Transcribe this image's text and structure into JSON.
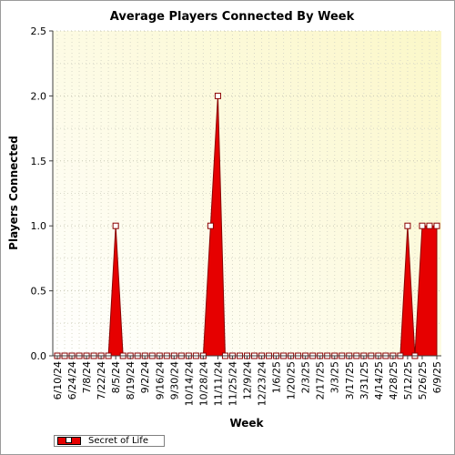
{
  "chart_data": {
    "type": "area",
    "title": "Average Players Connected By Week",
    "xlabel": "Week",
    "ylabel": "Players Connected",
    "ylim": [
      0,
      2.5
    ],
    "yticks": [
      "0.0",
      "0.5",
      "1.0",
      "1.5",
      "2.0",
      "2.5"
    ],
    "grid": true,
    "legend_position": "bottom-left",
    "x_tick_labels": [
      "6/10/24",
      "6/24/24",
      "7/8/24",
      "7/22/24",
      "8/5/24",
      "8/19/24",
      "9/2/24",
      "9/16/24",
      "9/30/24",
      "10/14/24",
      "10/28/24",
      "11/11/24",
      "11/25/24",
      "12/9/24",
      "12/23/24",
      "1/6/25",
      "1/20/25",
      "2/3/25",
      "2/17/25",
      "3/3/25",
      "3/17/25",
      "3/31/25",
      "4/14/25",
      "4/28/25",
      "5/12/25",
      "5/26/25",
      "6/9/25"
    ],
    "x": [
      "6/10/24",
      "6/17/24",
      "6/24/24",
      "7/1/24",
      "7/8/24",
      "7/15/24",
      "7/22/24",
      "7/29/24",
      "8/5/24",
      "8/12/24",
      "8/19/24",
      "8/26/24",
      "9/2/24",
      "9/9/24",
      "9/16/24",
      "9/23/24",
      "9/30/24",
      "10/7/24",
      "10/14/24",
      "10/21/24",
      "10/28/24",
      "11/4/24",
      "11/11/24",
      "11/18/24",
      "11/25/24",
      "12/2/24",
      "12/9/24",
      "12/16/24",
      "12/23/24",
      "12/30/24",
      "1/6/25",
      "1/13/25",
      "1/20/25",
      "1/27/25",
      "2/3/25",
      "2/10/25",
      "2/17/25",
      "2/24/25",
      "3/3/25",
      "3/10/25",
      "3/17/25",
      "3/24/25",
      "3/31/25",
      "4/7/25",
      "4/14/25",
      "4/21/25",
      "4/28/25",
      "5/5/25",
      "5/12/25",
      "5/19/25",
      "5/26/25",
      "6/2/25",
      "6/9/25"
    ],
    "series": [
      {
        "name": "Secret of Life",
        "color": "#e60000",
        "values": [
          0,
          0,
          0,
          0,
          0,
          0,
          0,
          0,
          1,
          0,
          0,
          0,
          0,
          0,
          0,
          0,
          0,
          0,
          0,
          0,
          0,
          1,
          2,
          0,
          0,
          0,
          0,
          0,
          0,
          0,
          0,
          0,
          0,
          0,
          0,
          0,
          0,
          0,
          0,
          0,
          0,
          0,
          0,
          0,
          0,
          0,
          0,
          0,
          1,
          0,
          1,
          1,
          1
        ]
      }
    ]
  }
}
